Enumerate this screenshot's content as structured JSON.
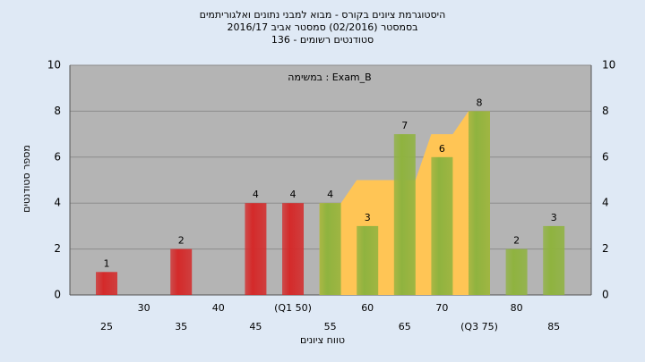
{
  "chart_data": {
    "type": "bar",
    "title": [
      "היסטוגרמת ציונים בקורס - מבוא למבני נתונים ואלגוריתמים",
      "בסמסטר  (02/2016)  סמסטר אביב 2016/17",
      "סטודנטים רשומים - 136"
    ],
    "annotation": "במשימה : Exam_B",
    "x_label": "טווח ציונים",
    "y_label": "מספר סטודנטים",
    "categories": [
      "25",
      "30",
      "35",
      "40",
      "45",
      "(Q1 50)",
      "55",
      "60",
      "65",
      "70",
      "(Q3 75)",
      "80",
      "85"
    ],
    "values": [
      1,
      0,
      2,
      0,
      4,
      4,
      4,
      3,
      7,
      6,
      8,
      2,
      3
    ],
    "colors": [
      "#d42a2a",
      "#d42a2a",
      "#d42a2a",
      "#d42a2a",
      "#d42a2a",
      "#d42a2a",
      "#8fb33f",
      "#8fb33f",
      "#8fb33f",
      "#8fb33f",
      "#8fb33f",
      "#8fb33f",
      "#8fb33f"
    ],
    "area": {
      "color": "#ffc555",
      "categories": [
        6,
        7,
        8,
        9,
        10
      ],
      "values": [
        4,
        5,
        5,
        7,
        8
      ]
    },
    "ylim": [
      0,
      10
    ],
    "yticks": [
      0,
      2,
      4,
      6,
      8,
      10
    ],
    "grid": true
  }
}
